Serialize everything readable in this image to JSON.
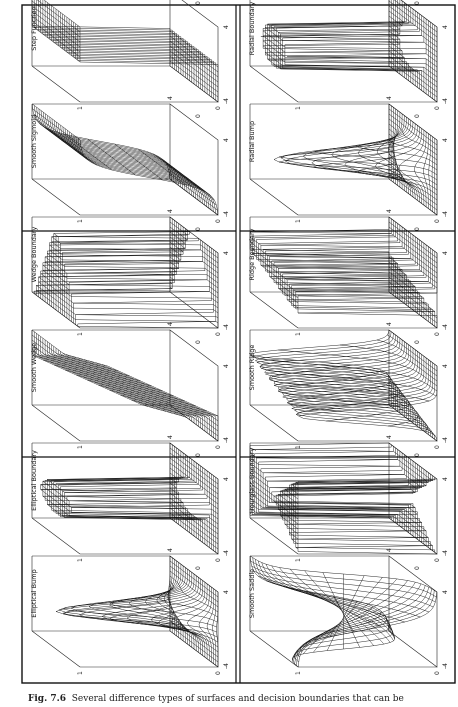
{
  "figure": {
    "label": "Fig. 7.6",
    "caption": "Several difference types of surfaces and decision boundaries that can be",
    "panels": [
      {
        "title": "Radial Boundary",
        "surface": "radial-boundary"
      },
      {
        "title": "Radial Bump",
        "surface": "radial-bump"
      },
      {
        "title": "Ridge Boundary",
        "surface": "ridge-boundary"
      },
      {
        "title": "Smooth Ridge",
        "surface": "smooth-ridge"
      },
      {
        "title": "Hourglass Boundary",
        "surface": "hourglass-boundary"
      },
      {
        "title": "Smooth Saddle",
        "surface": "smooth-saddle"
      },
      {
        "title": "Step Function",
        "surface": "step-function"
      },
      {
        "title": "Smooth Sigmoid",
        "surface": "smooth-sigmoid"
      },
      {
        "title": "Wedge Boundary",
        "surface": "wedge-boundary"
      },
      {
        "title": "Smooth Wedge",
        "surface": "smooth-wedge"
      },
      {
        "title": "Elliptical Boundary",
        "surface": "elliptical-boundary"
      },
      {
        "title": "Elliptical Bump",
        "surface": "elliptical-bump"
      }
    ],
    "tick_labels": {
      "z_top": "1",
      "z_bottom": "0",
      "x_low": "-4",
      "x_high": "4",
      "y_low": "-4",
      "y_mid": "0",
      "y_high": "4"
    }
  }
}
